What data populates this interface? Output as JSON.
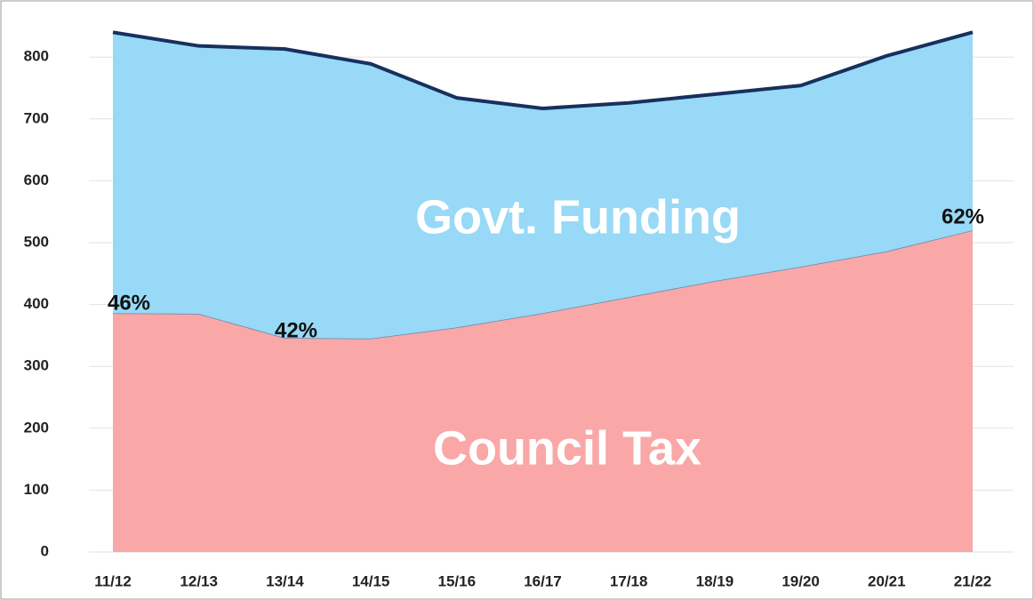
{
  "chart_data": {
    "type": "stacked_area",
    "categories": [
      "11/12",
      "12/13",
      "13/14",
      "14/15",
      "15/16",
      "16/17",
      "17/18",
      "18/19",
      "19/20",
      "20/21",
      "21/22"
    ],
    "series": [
      {
        "name": "Council Tax",
        "color": "#f9a7a7",
        "values": [
          386,
          385,
          346,
          345,
          363,
          386,
          412,
          438,
          461,
          486,
          520
        ]
      },
      {
        "name": "Govt. Funding",
        "color": "#97d9f6",
        "values": [
          454,
          433,
          467,
          444,
          371,
          331,
          314,
          302,
          293,
          316,
          320
        ]
      }
    ],
    "annotations": [
      "46%",
      "42%",
      "62%"
    ],
    "ylim": [
      0,
      850
    ],
    "yticks": [
      0,
      100,
      200,
      300,
      400,
      500,
      600,
      700,
      800
    ],
    "grid": true
  }
}
